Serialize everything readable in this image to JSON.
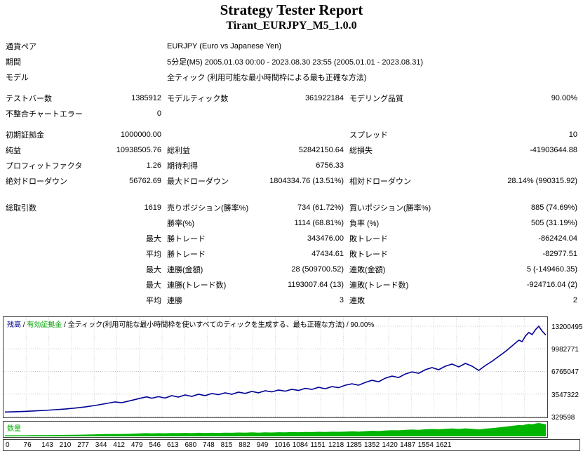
{
  "report": {
    "title": "Strategy Tester Report",
    "subtitle": "Tirant_EURJPY_M5_1.0.0"
  },
  "colors": {
    "balance_line": "#000096",
    "equity_green": "#00A000",
    "volume_green": "#00B400",
    "border": "#404040",
    "grid": "#c8c8c8"
  },
  "stats": {
    "rows": [
      {
        "cells": [
          {
            "cls": "l1w",
            "text": "通貨ペア"
          },
          {
            "cls": "wide",
            "text": "EURJPY (Euro vs Japanese Yen)"
          }
        ]
      },
      {
        "cells": [
          {
            "cls": "l1w",
            "text": "期間"
          },
          {
            "cls": "wide",
            "text": "5分足(M5) 2005.01.03 00:00 - 2023.08.30 23:55 (2005.01.01 - 2023.08.31)"
          }
        ]
      },
      {
        "cells": [
          {
            "cls": "l1w",
            "text": "モデル"
          },
          {
            "cls": "wide",
            "text": "全ティック (利用可能な最小時間枠による最も正確な方法)"
          }
        ]
      },
      {
        "gap": 1,
        "cells": [
          {
            "cls": "l1",
            "text": "テストバー数"
          },
          {
            "cls": "v1",
            "text": "1385912"
          },
          {
            "cls": "l2",
            "text": "モデルティック数"
          },
          {
            "cls": "v2",
            "text": "361922184"
          },
          {
            "cls": "l3",
            "text": "モデリング品質"
          },
          {
            "cls": "v3",
            "text": "90.00%"
          }
        ]
      },
      {
        "cells": [
          {
            "cls": "l1",
            "text": "不整合チャートエラー"
          },
          {
            "cls": "v1",
            "text": "0"
          }
        ]
      },
      {
        "gap": 1,
        "cells": [
          {
            "cls": "l1",
            "text": "初期証拠金"
          },
          {
            "cls": "v1",
            "text": "1000000.00"
          },
          {
            "cls": "l3",
            "text": "スプレッド"
          },
          {
            "cls": "v3",
            "text": "10"
          }
        ]
      },
      {
        "cells": [
          {
            "cls": "l1",
            "text": "純益"
          },
          {
            "cls": "v1",
            "text": "10938505.76"
          },
          {
            "cls": "l2",
            "text": "総利益"
          },
          {
            "cls": "v2",
            "text": "52842150.64"
          },
          {
            "cls": "l3",
            "text": "総損失"
          },
          {
            "cls": "v3",
            "text": "-41903644.88"
          }
        ]
      },
      {
        "cells": [
          {
            "cls": "l1",
            "text": "プロフィットファクタ"
          },
          {
            "cls": "v1",
            "text": "1.26"
          },
          {
            "cls": "l2",
            "text": "期待利得"
          },
          {
            "cls": "v2",
            "text": "6756.33"
          }
        ]
      },
      {
        "cells": [
          {
            "cls": "l1",
            "text": "絶対ドローダウン"
          },
          {
            "cls": "v1",
            "text": "56762.69"
          },
          {
            "cls": "l2",
            "text": "最大ドローダウン"
          },
          {
            "cls": "v2",
            "text": "1804334.76 (13.51%)"
          },
          {
            "cls": "l3",
            "text": "相対ドローダウン"
          },
          {
            "cls": "v3",
            "text": "28.14% (990315.92)"
          }
        ]
      },
      {
        "gap": 2,
        "cells": [
          {
            "cls": "l1",
            "text": "総取引数"
          },
          {
            "cls": "v1",
            "text": "1619"
          },
          {
            "cls": "l2",
            "text": "売りポジション(勝率%)"
          },
          {
            "cls": "v2",
            "text": "734 (61.72%)"
          },
          {
            "cls": "l3",
            "text": "買いポジション(勝率%)"
          },
          {
            "cls": "v3",
            "text": "885 (74.69%)"
          }
        ]
      },
      {
        "cells": [
          {
            "cls": "l2",
            "text": "勝率(%)"
          },
          {
            "cls": "v2",
            "text": "1114 (68.81%)"
          },
          {
            "cls": "l3",
            "text": "負率 (%)"
          },
          {
            "cls": "v3",
            "text": "505 (31.19%)"
          }
        ]
      },
      {
        "cells": [
          {
            "cls": "v1",
            "text": "最大",
            "name": "stat-row-prefix"
          },
          {
            "cls": "l2",
            "text": "勝トレード"
          },
          {
            "cls": "v2",
            "text": "343476.00"
          },
          {
            "cls": "l3",
            "text": "敗トレード"
          },
          {
            "cls": "v3",
            "text": "-862424.04"
          }
        ]
      },
      {
        "cells": [
          {
            "cls": "v1",
            "text": "平均",
            "name": "stat-row-prefix"
          },
          {
            "cls": "l2",
            "text": "勝トレード"
          },
          {
            "cls": "v2",
            "text": "47434.61"
          },
          {
            "cls": "l3",
            "text": "敗トレード"
          },
          {
            "cls": "v3",
            "text": "-82977.51"
          }
        ]
      },
      {
        "cells": [
          {
            "cls": "v1",
            "text": "最大",
            "name": "stat-row-prefix"
          },
          {
            "cls": "l2",
            "text": "連勝(金額)"
          },
          {
            "cls": "v2",
            "text": "28 (509700.52)"
          },
          {
            "cls": "l3",
            "text": "連敗(金額)"
          },
          {
            "cls": "v3",
            "text": "5 (-149460.35)"
          }
        ]
      },
      {
        "cells": [
          {
            "cls": "v1",
            "text": "最大",
            "name": "stat-row-prefix"
          },
          {
            "cls": "l2",
            "text": "連勝(トレード数)"
          },
          {
            "cls": "v2",
            "text": "1193007.64 (13)"
          },
          {
            "cls": "l3",
            "text": "連敗(トレード数)"
          },
          {
            "cls": "v3",
            "text": "-924716.04 (2)"
          }
        ]
      },
      {
        "cells": [
          {
            "cls": "v1",
            "text": "平均",
            "name": "stat-row-prefix"
          },
          {
            "cls": "l2",
            "text": "連勝"
          },
          {
            "cls": "v2",
            "text": "3"
          },
          {
            "cls": "l3",
            "text": "連敗"
          },
          {
            "cls": "v3",
            "text": "2"
          }
        ]
      }
    ]
  },
  "chart_data": [
    {
      "type": "line",
      "name": "balance-curve",
      "line_color": "#000096",
      "xmax": 1621,
      "legend": [
        {
          "text": "残高",
          "color": "#000096"
        },
        {
          "text": "有効証拠金",
          "color": "#00A000"
        },
        {
          "text": "全ティック(利用可能な最小時間枠を使いすべてのティックを生成する、最も正確な方法)",
          "color": "#000000"
        },
        {
          "text": "90.00%",
          "color": "#000000"
        }
      ],
      "yticks": [
        13200495,
        9982771,
        6765047,
        3547322,
        329598
      ],
      "xticks": [
        0,
        76,
        143,
        210,
        277,
        344,
        412,
        479,
        546,
        613,
        680,
        748,
        815,
        882,
        949,
        1016,
        1084,
        1151,
        1218,
        1285,
        1352,
        1420,
        1487,
        1554,
        1621
      ],
      "points": [
        [
          0,
          1000000
        ],
        [
          30,
          1040000
        ],
        [
          60,
          1090000
        ],
        [
          90,
          1160000
        ],
        [
          120,
          1230000
        ],
        [
          150,
          1330000
        ],
        [
          180,
          1420000
        ],
        [
          210,
          1560000
        ],
        [
          240,
          1720000
        ],
        [
          270,
          1930000
        ],
        [
          300,
          2180000
        ],
        [
          330,
          2430000
        ],
        [
          350,
          2330000
        ],
        [
          380,
          2650000
        ],
        [
          410,
          3000000
        ],
        [
          425,
          3150000
        ],
        [
          440,
          2950000
        ],
        [
          460,
          3180000
        ],
        [
          480,
          2980000
        ],
        [
          500,
          3320000
        ],
        [
          520,
          3120000
        ],
        [
          540,
          3420000
        ],
        [
          560,
          3220000
        ],
        [
          580,
          3520000
        ],
        [
          600,
          3330000
        ],
        [
          620,
          3620000
        ],
        [
          640,
          3460000
        ],
        [
          660,
          3720000
        ],
        [
          680,
          3520000
        ],
        [
          700,
          3820000
        ],
        [
          720,
          3640000
        ],
        [
          740,
          3920000
        ],
        [
          760,
          3730000
        ],
        [
          780,
          4020000
        ],
        [
          800,
          3860000
        ],
        [
          820,
          4120000
        ],
        [
          840,
          3960000
        ],
        [
          860,
          4220000
        ],
        [
          880,
          4060000
        ],
        [
          900,
          4360000
        ],
        [
          920,
          4210000
        ],
        [
          940,
          4510000
        ],
        [
          960,
          4310000
        ],
        [
          980,
          4610000
        ],
        [
          1000,
          4460000
        ],
        [
          1020,
          4810000
        ],
        [
          1040,
          5010000
        ],
        [
          1060,
          4810000
        ],
        [
          1080,
          5210000
        ],
        [
          1100,
          5510000
        ],
        [
          1120,
          5310000
        ],
        [
          1140,
          5810000
        ],
        [
          1160,
          6110000
        ],
        [
          1180,
          5910000
        ],
        [
          1200,
          6410000
        ],
        [
          1220,
          6710000
        ],
        [
          1240,
          6510000
        ],
        [
          1260,
          7010000
        ],
        [
          1280,
          7310000
        ],
        [
          1300,
          7010000
        ],
        [
          1320,
          7510000
        ],
        [
          1340,
          7810000
        ],
        [
          1360,
          7410000
        ],
        [
          1380,
          7910000
        ],
        [
          1400,
          7510000
        ],
        [
          1420,
          6910000
        ],
        [
          1440,
          7610000
        ],
        [
          1460,
          8210000
        ],
        [
          1480,
          8910000
        ],
        [
          1500,
          9610000
        ],
        [
          1520,
          10410000
        ],
        [
          1540,
          11210000
        ],
        [
          1550,
          11010000
        ],
        [
          1560,
          11810000
        ],
        [
          1570,
          12310000
        ],
        [
          1580,
          12010000
        ],
        [
          1590,
          12710000
        ],
        [
          1600,
          13200495
        ],
        [
          1610,
          12500000
        ],
        [
          1621,
          11938506
        ]
      ]
    },
    {
      "type": "area",
      "name": "lots-histogram",
      "label": "数量",
      "color": "#00B400",
      "xmax": 1621,
      "max_value": 100,
      "points": [
        [
          0,
          8
        ],
        [
          30,
          8
        ],
        [
          60,
          8
        ],
        [
          90,
          9
        ],
        [
          120,
          9
        ],
        [
          150,
          10
        ],
        [
          180,
          11
        ],
        [
          210,
          12
        ],
        [
          240,
          13
        ],
        [
          270,
          15
        ],
        [
          300,
          17
        ],
        [
          330,
          18
        ],
        [
          350,
          18
        ],
        [
          380,
          20
        ],
        [
          410,
          23
        ],
        [
          425,
          24
        ],
        [
          440,
          22
        ],
        [
          460,
          24
        ],
        [
          480,
          23
        ],
        [
          500,
          25
        ],
        [
          520,
          24
        ],
        [
          540,
          26
        ],
        [
          560,
          24
        ],
        [
          580,
          27
        ],
        [
          600,
          25
        ],
        [
          620,
          27
        ],
        [
          640,
          26
        ],
        [
          660,
          28
        ],
        [
          680,
          27
        ],
        [
          700,
          29
        ],
        [
          720,
          28
        ],
        [
          740,
          30
        ],
        [
          760,
          28
        ],
        [
          780,
          30
        ],
        [
          800,
          29
        ],
        [
          820,
          31
        ],
        [
          840,
          30
        ],
        [
          860,
          32
        ],
        [
          880,
          31
        ],
        [
          900,
          33
        ],
        [
          920,
          32
        ],
        [
          940,
          34
        ],
        [
          960,
          33
        ],
        [
          980,
          35
        ],
        [
          1000,
          34
        ],
        [
          1020,
          36
        ],
        [
          1040,
          38
        ],
        [
          1060,
          36
        ],
        [
          1080,
          39
        ],
        [
          1100,
          42
        ],
        [
          1120,
          40
        ],
        [
          1140,
          44
        ],
        [
          1160,
          46
        ],
        [
          1180,
          45
        ],
        [
          1200,
          49
        ],
        [
          1220,
          51
        ],
        [
          1240,
          49
        ],
        [
          1260,
          53
        ],
        [
          1280,
          55
        ],
        [
          1300,
          53
        ],
        [
          1320,
          57
        ],
        [
          1340,
          59
        ],
        [
          1360,
          56
        ],
        [
          1380,
          60
        ],
        [
          1400,
          57
        ],
        [
          1420,
          52
        ],
        [
          1440,
          58
        ],
        [
          1460,
          62
        ],
        [
          1480,
          67
        ],
        [
          1500,
          73
        ],
        [
          1520,
          79
        ],
        [
          1540,
          85
        ],
        [
          1550,
          83
        ],
        [
          1560,
          89
        ],
        [
          1570,
          93
        ],
        [
          1580,
          91
        ],
        [
          1590,
          96
        ],
        [
          1600,
          100
        ],
        [
          1610,
          95
        ],
        [
          1621,
          90
        ]
      ]
    }
  ]
}
